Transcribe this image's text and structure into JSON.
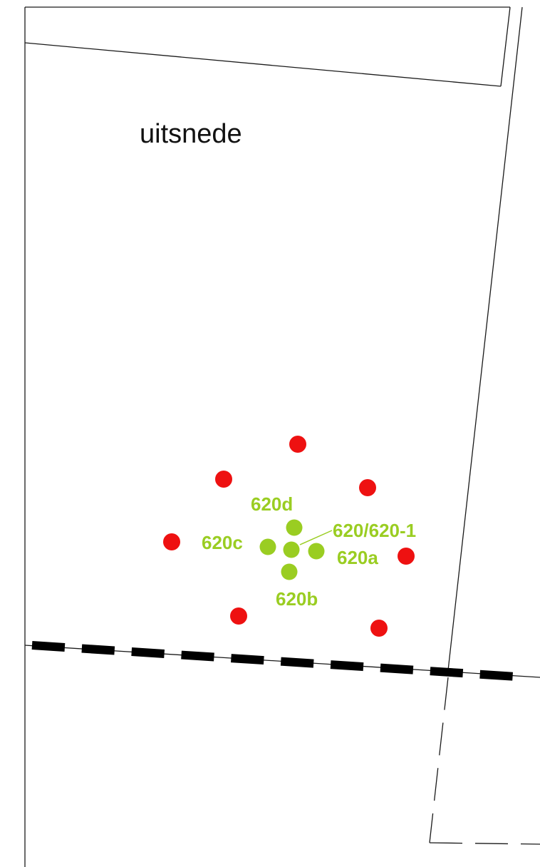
{
  "map": {
    "title": "uitsnede",
    "colors": {
      "line": "#1a1a1a",
      "dashed_boundary": "#000000",
      "red_point": "#ee1111",
      "green_point": "#9acd22",
      "green_label": "#9acd22"
    },
    "red_points": [
      {
        "id": "red-top"
      },
      {
        "id": "red-upper-left"
      },
      {
        "id": "red-upper-right"
      },
      {
        "id": "red-left"
      },
      {
        "id": "red-right"
      },
      {
        "id": "red-lower-left"
      },
      {
        "id": "red-lower-right"
      }
    ],
    "green_points": [
      {
        "id": "620d",
        "label": "620d"
      },
      {
        "id": "620c",
        "label": "620c"
      },
      {
        "id": "620",
        "label": "620/620-1"
      },
      {
        "id": "620a",
        "label": "620a"
      },
      {
        "id": "620b",
        "label": "620b"
      }
    ]
  }
}
